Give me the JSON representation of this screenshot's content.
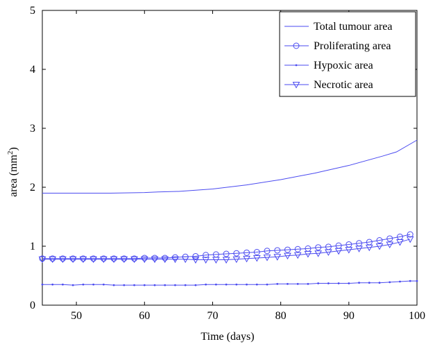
{
  "chart_data": {
    "type": "line",
    "title": "",
    "xlabel": "Time (days)",
    "ylabel": "area (mm",
    "ylabel_sup": "2",
    "ylabel_end": ")",
    "xlim": [
      45,
      100
    ],
    "ylim": [
      0,
      5
    ],
    "xticks": [
      50,
      60,
      70,
      80,
      90,
      100
    ],
    "yticks": [
      0,
      1,
      2,
      3,
      4,
      5
    ],
    "grid": false,
    "legend_position": "top-right",
    "color": "#4a4af0",
    "series": [
      {
        "name": "Total tumour area",
        "marker": "none",
        "x": [
          45,
          50,
          55,
          60,
          62,
          65,
          70,
          75,
          80,
          85,
          90,
          95,
          97,
          100
        ],
        "y": [
          1.9,
          1.9,
          1.9,
          1.91,
          1.92,
          1.93,
          1.97,
          2.04,
          2.13,
          2.24,
          2.37,
          2.53,
          2.6,
          2.8
        ]
      },
      {
        "name": "Proliferating area",
        "marker": "circle",
        "x": [
          45,
          46.5,
          48,
          49.5,
          51,
          52.5,
          54,
          55.5,
          57,
          58.5,
          60,
          61.5,
          63,
          64.5,
          66,
          67.5,
          69,
          70.5,
          72,
          73.5,
          75,
          76.5,
          78,
          79.5,
          81,
          82.5,
          84,
          85.5,
          87,
          88.5,
          90,
          91.5,
          93,
          94.5,
          96,
          97.5,
          99
        ],
        "y": [
          0.79,
          0.79,
          0.79,
          0.79,
          0.79,
          0.79,
          0.79,
          0.79,
          0.79,
          0.79,
          0.8,
          0.8,
          0.8,
          0.81,
          0.82,
          0.83,
          0.85,
          0.86,
          0.87,
          0.88,
          0.89,
          0.9,
          0.92,
          0.93,
          0.94,
          0.95,
          0.96,
          0.98,
          0.99,
          1.01,
          1.03,
          1.05,
          1.07,
          1.1,
          1.13,
          1.16,
          1.2
        ]
      },
      {
        "name": "Hypoxic area",
        "marker": "dot",
        "x": [
          45,
          46.5,
          48,
          49.5,
          51,
          52.5,
          54,
          55.5,
          57,
          58.5,
          60,
          61.5,
          63,
          64.5,
          66,
          67.5,
          69,
          70.5,
          72,
          73.5,
          75,
          76.5,
          78,
          79.5,
          81,
          82.5,
          84,
          85.5,
          87,
          88.5,
          90,
          91.5,
          93,
          94.5,
          96,
          97.5,
          99,
          100
        ],
        "y": [
          0.35,
          0.35,
          0.35,
          0.34,
          0.35,
          0.35,
          0.35,
          0.34,
          0.34,
          0.34,
          0.34,
          0.34,
          0.34,
          0.34,
          0.34,
          0.34,
          0.35,
          0.35,
          0.35,
          0.35,
          0.35,
          0.35,
          0.35,
          0.36,
          0.36,
          0.36,
          0.36,
          0.37,
          0.37,
          0.37,
          0.37,
          0.38,
          0.38,
          0.38,
          0.39,
          0.4,
          0.41,
          0.41
        ]
      },
      {
        "name": "Necrotic area",
        "marker": "triangle-down",
        "x": [
          45,
          46.5,
          48,
          49.5,
          51,
          52.5,
          54,
          55.5,
          57,
          58.5,
          60,
          61.5,
          63,
          64.5,
          66,
          67.5,
          69,
          70.5,
          72,
          73.5,
          75,
          76.5,
          78,
          79.5,
          81,
          82.5,
          84,
          85.5,
          87,
          88.5,
          90,
          91.5,
          93,
          94.5,
          96,
          97.5,
          99
        ],
        "y": [
          0.78,
          0.78,
          0.78,
          0.78,
          0.78,
          0.78,
          0.78,
          0.78,
          0.78,
          0.78,
          0.78,
          0.78,
          0.78,
          0.78,
          0.78,
          0.77,
          0.77,
          0.77,
          0.77,
          0.78,
          0.79,
          0.8,
          0.81,
          0.82,
          0.84,
          0.85,
          0.87,
          0.88,
          0.9,
          0.92,
          0.94,
          0.96,
          0.98,
          1.0,
          1.03,
          1.07,
          1.12
        ]
      }
    ]
  }
}
